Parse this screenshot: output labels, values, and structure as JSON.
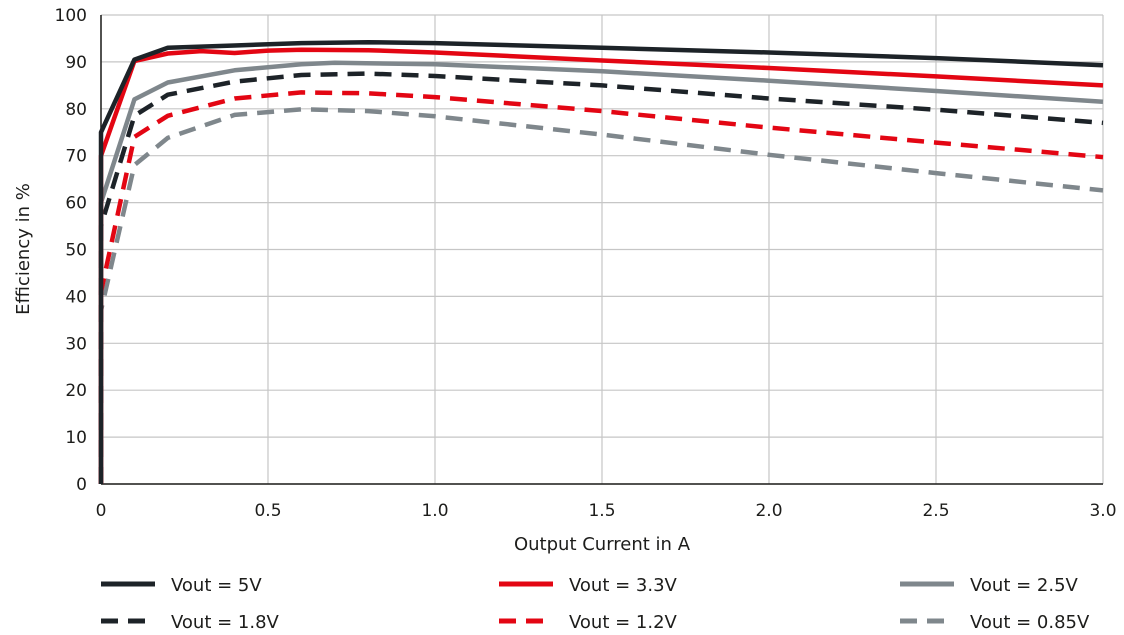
{
  "chart_data": {
    "type": "line",
    "xlabel": "Output Current in A",
    "ylabel": "Efficiency in %",
    "xlim": [
      0,
      3.0
    ],
    "ylim": [
      0,
      100
    ],
    "x_ticks": [
      0,
      0.5,
      1.0,
      1.5,
      2.0,
      2.5,
      3.0
    ],
    "x_tick_labels": [
      "0",
      "0.5",
      "1.0",
      "1.5",
      "2.0",
      "2.5",
      "3.0"
    ],
    "y_ticks": [
      0,
      10,
      20,
      30,
      40,
      50,
      60,
      70,
      80,
      90,
      100
    ],
    "y_tick_labels": [
      "0",
      "10",
      "20",
      "30",
      "40",
      "50",
      "60",
      "70",
      "80",
      "90",
      "100"
    ],
    "grid": true,
    "legend_position": "bottom",
    "series": [
      {
        "name": "Vout = 5V",
        "color": "#1d2328",
        "dash": "solid",
        "x": [
          0,
          0.1,
          0.2,
          0.4,
          0.6,
          0.8,
          1.0,
          1.5,
          2.0,
          2.5,
          3.0
        ],
        "y": [
          75,
          90.5,
          93,
          93.5,
          94,
          94.2,
          94,
          93,
          92,
          90.8,
          89.3
        ]
      },
      {
        "name": "Vout = 3.3V",
        "color": "#e30613",
        "dash": "solid",
        "x": [
          0,
          0.1,
          0.2,
          0.3,
          0.4,
          0.5,
          0.6,
          0.8,
          1.0,
          1.5,
          2.0,
          2.5,
          3.0
        ],
        "y": [
          70,
          90.2,
          91.8,
          92.3,
          91.9,
          92.4,
          92.6,
          92.5,
          92,
          90.3,
          88.7,
          86.9,
          85
        ]
      },
      {
        "name": "Vout = 2.5V",
        "color": "#7f878c",
        "dash": "solid",
        "x": [
          0,
          0.1,
          0.2,
          0.4,
          0.6,
          0.7,
          1.0,
          1.5,
          2.0,
          2.5,
          3.0
        ],
        "y": [
          60,
          82,
          85.6,
          88.2,
          89.5,
          89.8,
          89.5,
          88,
          86,
          83.8,
          81.5
        ]
      },
      {
        "name": "Vout = 1.8V",
        "color": "#1d2328",
        "dash": "dashed",
        "x": [
          0,
          0.1,
          0.2,
          0.4,
          0.6,
          0.8,
          1.0,
          1.5,
          2.0,
          2.5,
          3.0
        ],
        "y": [
          55,
          78.5,
          83,
          85.8,
          87.2,
          87.5,
          87,
          85,
          82.2,
          79.8,
          77
        ]
      },
      {
        "name": "Vout = 1.2V",
        "color": "#e30613",
        "dash": "dashed",
        "x": [
          0,
          0.1,
          0.2,
          0.4,
          0.6,
          0.8,
          1.0,
          1.5,
          2.0,
          2.5,
          3.0
        ],
        "y": [
          41,
          74,
          78.5,
          82.2,
          83.5,
          83.3,
          82.5,
          79.5,
          76,
          72.8,
          69.7
        ]
      },
      {
        "name": "Vout = 0.85V",
        "color": "#7f878c",
        "dash": "dashed",
        "x": [
          0,
          0.1,
          0.2,
          0.4,
          0.6,
          0.8,
          1.0,
          1.5,
          2.0,
          2.5,
          3.0
        ],
        "y": [
          37,
          68,
          73.8,
          78.7,
          79.9,
          79.5,
          78.4,
          74.5,
          70.2,
          66.3,
          62.6
        ]
      }
    ]
  }
}
